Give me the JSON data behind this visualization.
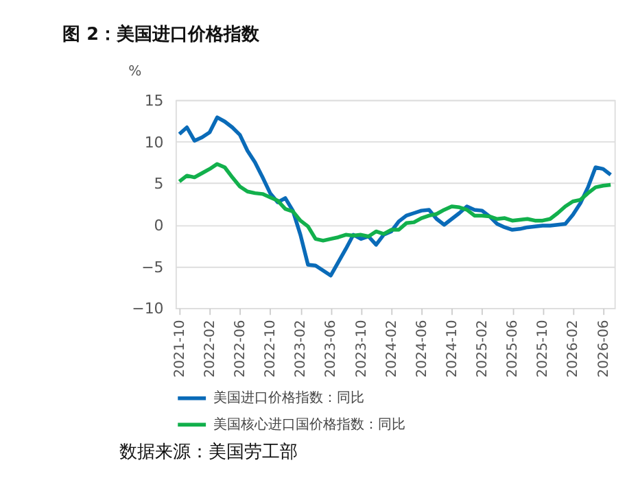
{
  "chart_data": {
    "type": "line",
    "title": "图 2：美国进口价格指数",
    "ylabel": "%",
    "categories": [
      "2021-10",
      null,
      null,
      null,
      "2022-02",
      null,
      null,
      null,
      "2022-06",
      null,
      null,
      null,
      "2022-10",
      null,
      null,
      null,
      "2023-02",
      null,
      null,
      null,
      "2023-06",
      null,
      null,
      null,
      "2023-10",
      null,
      null,
      null,
      "2024-02",
      null,
      null,
      null,
      "2024-06",
      null,
      null,
      null,
      "2024-10",
      null,
      null,
      null,
      "2025-02",
      null,
      null,
      null,
      "2025-06",
      null,
      null,
      null,
      "2025-10",
      null,
      null,
      null,
      "2026-02",
      null,
      null,
      null,
      "2026-06",
      null
    ],
    "series": [
      {
        "name": "美国进口价格指数：同比",
        "color": "#0a6bb8",
        "values": [
          10.9,
          11.7,
          10.1,
          10.5,
          11.1,
          12.9,
          12.4,
          11.7,
          10.8,
          8.9,
          7.5,
          5.7,
          3.8,
          2.7,
          3.2,
          1.7,
          -1.2,
          -4.8,
          -4.9,
          -5.5,
          -6.1,
          -4.5,
          -2.9,
          -1.2,
          -1.7,
          -1.4,
          -2.4,
          -1.2,
          -0.8,
          0.4,
          1.1,
          1.4,
          1.7,
          1.8,
          0.7,
          0,
          0.7,
          1.4,
          2.2,
          1.8,
          1.7,
          1.0,
          0.1,
          -0.3,
          -0.6,
          -0.5,
          -0.3,
          -0.2,
          -0.1,
          -0.1,
          0,
          0.1,
          1.2,
          2.6,
          4.5,
          6.9,
          6.7,
          6.0
        ]
      },
      {
        "name": "美国核心进口国价格指数：同比",
        "color": "#12b04c",
        "values": [
          5.2,
          5.9,
          5.7,
          6.2,
          6.7,
          7.3,
          6.9,
          5.7,
          4.6,
          4.0,
          3.8,
          3.7,
          3.3,
          2.9,
          1.9,
          1.6,
          0.5,
          -0.2,
          -1.7,
          -1.9,
          -1.7,
          -1.5,
          -1.2,
          -1.3,
          -1.2,
          -1.4,
          -0.8,
          -1.1,
          -0.6,
          -0.6,
          0.2,
          0.3,
          0.8,
          1.1,
          1.3,
          1.8,
          2.2,
          2.1,
          1.8,
          1.1,
          1.1,
          1.0,
          0.7,
          0.8,
          0.5,
          0.6,
          0.7,
          0.5,
          0.5,
          0.7,
          1.4,
          2.2,
          2.8,
          3.0,
          3.8,
          4.5,
          4.7,
          4.8
        ]
      }
    ],
    "ylim": [
      -10,
      15
    ],
    "yticks": [
      -10,
      -5,
      0,
      5,
      10,
      15
    ],
    "grid": "y",
    "legend": "bottom",
    "line_style": "solid",
    "annotations": [
      "数据来源：美国劳工部"
    ]
  }
}
